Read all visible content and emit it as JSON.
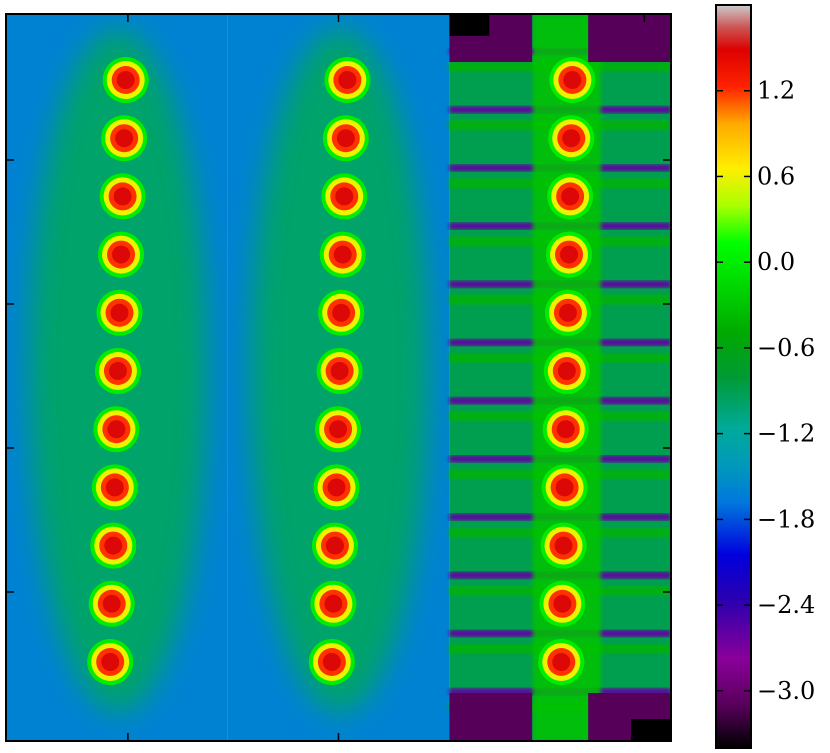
{
  "chart_data": {
    "type": "heatmap",
    "title": "",
    "xlabel": "",
    "ylabel": "",
    "colormap": "nipy_spectral",
    "panels": [
      {
        "name": "",
        "blob_count": 11,
        "blob_peak": 1.5,
        "background": -1.6,
        "halo": -1.0,
        "stripe_pattern": false
      },
      {
        "name": "",
        "blob_count": 11,
        "blob_peak": 1.5,
        "background": -1.6,
        "halo": -1.0,
        "stripe_pattern": false
      },
      {
        "name": "",
        "blob_count": 11,
        "blob_peak": 1.5,
        "background": -0.9,
        "stripe_low": -2.6,
        "corner_min": -3.4,
        "stripe_pattern": true
      }
    ],
    "colorbar": {
      "vmin": -3.4,
      "vmax": 1.8,
      "ticks": [
        1.2,
        0.6,
        0.0,
        -0.6,
        -1.2,
        -1.8,
        -2.4,
        -3.0
      ],
      "tick_labels": [
        "1.2",
        "0.6",
        "0.0",
        "−0.6",
        "−1.2",
        "−1.8",
        "−2.4",
        "−3.0"
      ]
    },
    "grid": false,
    "legend": "none"
  }
}
